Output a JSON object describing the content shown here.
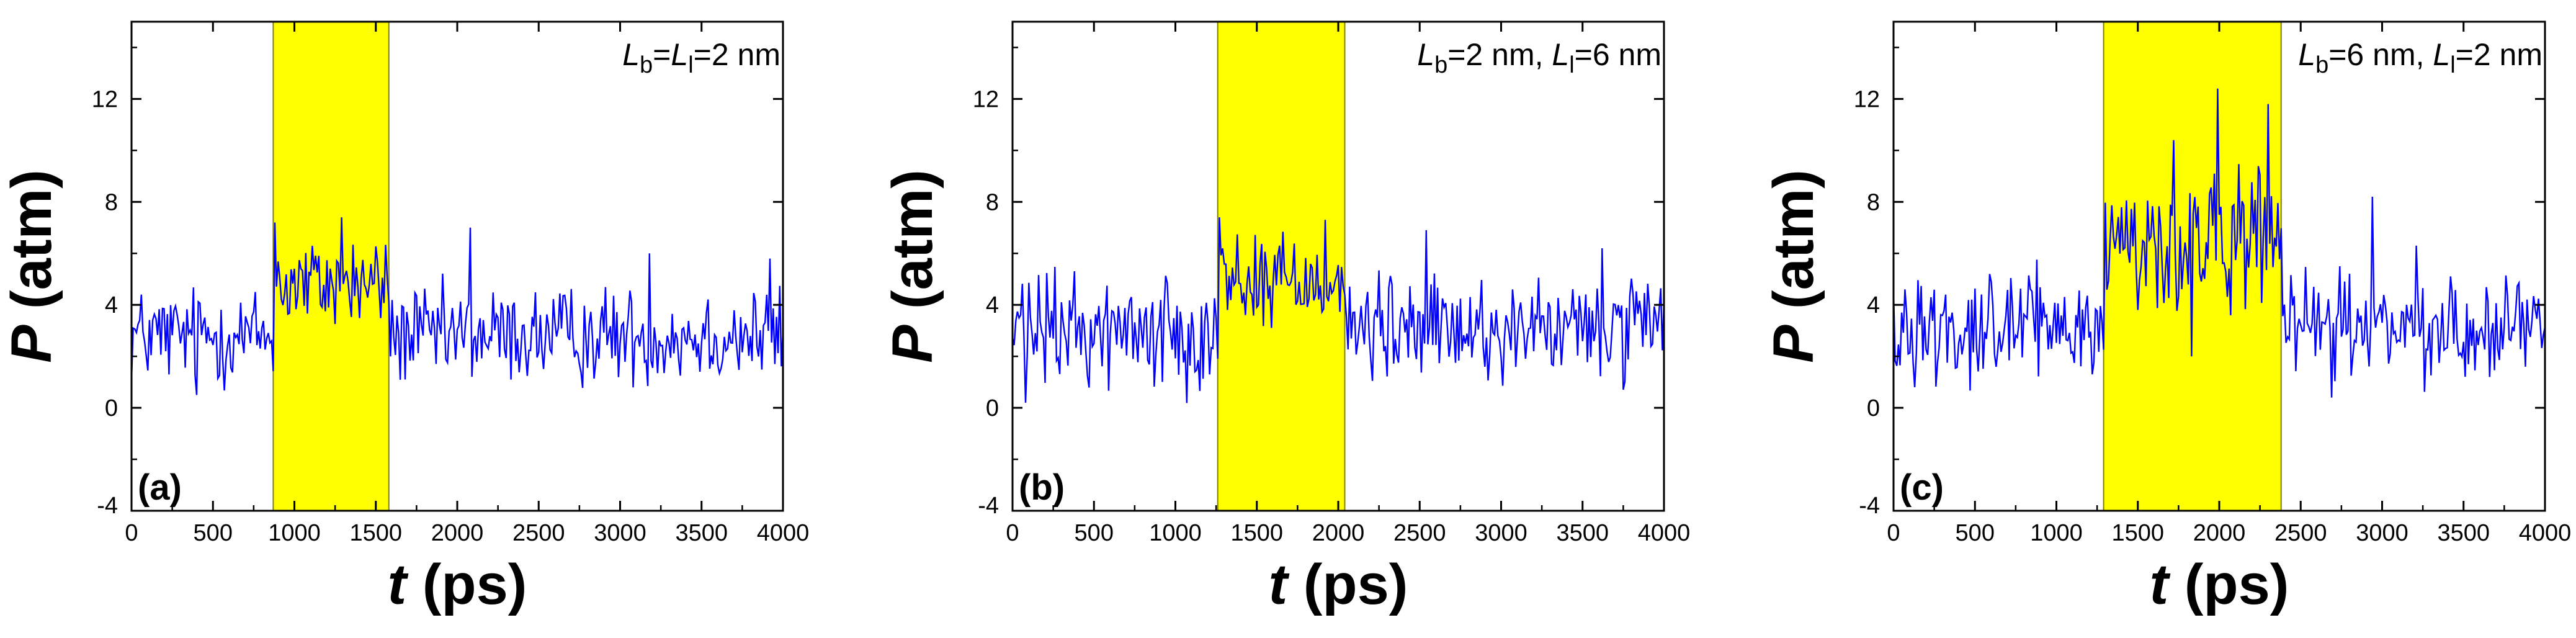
{
  "colors": {
    "signal": "#0000ff",
    "highlight": "#ffff00",
    "highlight_border": "#808000",
    "axis": "#000000"
  },
  "chart_data": [
    {
      "type": "line",
      "panel_label": "(a)",
      "annotation": {
        "parts": [
          {
            "t": "L",
            "style": "italic"
          },
          {
            "t": "b",
            "style": "sub"
          },
          {
            "t": "=",
            "style": "normal"
          },
          {
            "t": "L",
            "style": "italic"
          },
          {
            "t": "l",
            "style": "sub"
          },
          {
            "t": "=2 nm",
            "style": "normal"
          }
        ]
      },
      "xlabel": {
        "var": "t",
        "unit": " (ps)"
      },
      "ylabel": {
        "var": "P",
        "unit": " (atm)"
      },
      "xlim": [
        0,
        4000
      ],
      "ylim": [
        -4,
        15
      ],
      "xticks": [
        0,
        500,
        1000,
        1500,
        2000,
        2500,
        3000,
        3500,
        4000
      ],
      "yticks": [
        -4,
        0,
        4,
        8,
        12
      ],
      "highlight_span": [
        870,
        1580
      ],
      "series": {
        "name": "P",
        "n_points": 400,
        "regime": [
          {
            "from": 0,
            "to": 870,
            "mean": 2.8,
            "amp": 1.5
          },
          {
            "from": 870,
            "to": 1580,
            "mean": 4.8,
            "amp": 1.5
          },
          {
            "from": 1580,
            "to": 4000,
            "mean": 2.8,
            "amp": 1.5
          }
        ],
        "peaks": [
          [
            880,
            7.2
          ],
          [
            1290,
            7.4
          ],
          [
            2080,
            7.0
          ],
          [
            3180,
            6.0
          ],
          [
            3920,
            5.8
          ],
          [
            400,
            0.5
          ]
        ]
      }
    },
    {
      "type": "line",
      "panel_label": "(b)",
      "annotation": {
        "parts": [
          {
            "t": "L",
            "style": "italic"
          },
          {
            "t": "b",
            "style": "sub"
          },
          {
            "t": "=2 nm, ",
            "style": "normal"
          },
          {
            "t": "L",
            "style": "italic"
          },
          {
            "t": "l",
            "style": "sub"
          },
          {
            "t": "=6 nm",
            "style": "normal"
          }
        ]
      },
      "xlabel": {
        "var": "t",
        "unit": " (ps)"
      },
      "ylabel": {
        "var": "P",
        "unit": " (atm)"
      },
      "xlim": [
        0,
        4000
      ],
      "ylim": [
        -4,
        15
      ],
      "xticks": [
        0,
        500,
        1000,
        1500,
        2000,
        2500,
        3000,
        3500,
        4000
      ],
      "yticks": [
        -4,
        0,
        4,
        8,
        12
      ],
      "highlight_span": [
        1260,
        2040
      ],
      "series": {
        "name": "P",
        "n_points": 400,
        "regime": [
          {
            "from": 0,
            "to": 1260,
            "mean": 3.0,
            "amp": 1.7
          },
          {
            "from": 1260,
            "to": 2040,
            "mean": 5.0,
            "amp": 1.6
          },
          {
            "from": 2040,
            "to": 4000,
            "mean": 3.0,
            "amp": 1.6
          }
        ],
        "peaks": [
          [
            1270,
            7.4
          ],
          [
            1920,
            7.3
          ],
          [
            2540,
            6.9
          ],
          [
            3620,
            6.2
          ],
          [
            80,
            0.2
          ]
        ]
      }
    },
    {
      "type": "line",
      "panel_label": "(c)",
      "annotation": {
        "parts": [
          {
            "t": "L",
            "style": "italic"
          },
          {
            "t": "b",
            "style": "sub"
          },
          {
            "t": "=6 nm, ",
            "style": "normal"
          },
          {
            "t": "L",
            "style": "italic"
          },
          {
            "t": "l",
            "style": "sub"
          },
          {
            "t": "=2 nm",
            "style": "normal"
          }
        ]
      },
      "xlabel": {
        "var": "t",
        "unit": " (ps)"
      },
      "ylabel": {
        "var": "P",
        "unit": " (atm)"
      },
      "xlim": [
        0,
        4000
      ],
      "ylim": [
        -4,
        15
      ],
      "xticks": [
        0,
        500,
        1000,
        1500,
        2000,
        2500,
        3000,
        3500,
        4000
      ],
      "yticks": [
        -4,
        0,
        4,
        8,
        12
      ],
      "highlight_span": [
        1290,
        2380
      ],
      "series": {
        "name": "P",
        "n_points": 400,
        "regime": [
          {
            "from": 0,
            "to": 1290,
            "mean": 3.2,
            "amp": 1.6
          },
          {
            "from": 1290,
            "to": 2380,
            "mean": 6.3,
            "amp": 2.3
          },
          {
            "from": 2380,
            "to": 4000,
            "mean": 3.1,
            "amp": 1.6
          }
        ],
        "peaks": [
          [
            1990,
            12.4
          ],
          [
            2300,
            11.8
          ],
          [
            1720,
            10.4
          ],
          [
            2940,
            8.2
          ],
          [
            3210,
            6.3
          ],
          [
            1830,
            2.0
          ]
        ]
      }
    }
  ]
}
